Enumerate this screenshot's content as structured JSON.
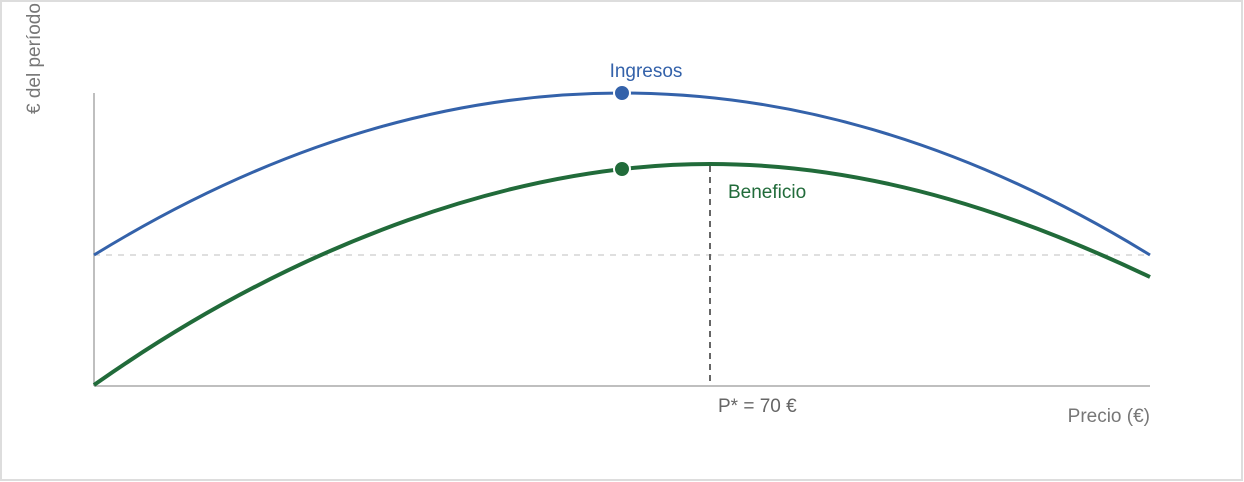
{
  "axes": {
    "y_label": "€ del período",
    "x_label": "Precio (€)"
  },
  "curves": [
    {
      "label": "Ingresos"
    },
    {
      "label": "Beneficio"
    }
  ],
  "optimum": {
    "label": "P* = 70 €"
  }
}
